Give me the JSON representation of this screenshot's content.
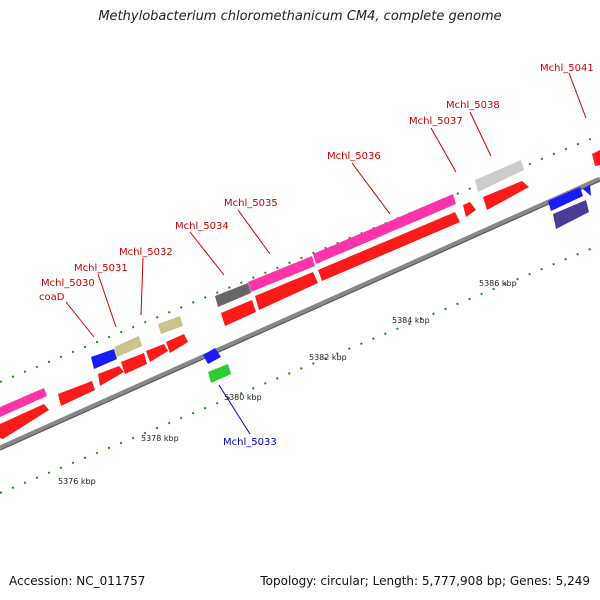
{
  "title": "Methylobacterium chloromethanicum CM4, complete genome",
  "footer": {
    "accession": "Accession: NC_011757",
    "summary": "Topology: circular; Length: 5,777,908 bp; Genes: 5,249"
  },
  "colors": {
    "cds_red": "#ff1a1a",
    "cds_pink": "#ff33aa",
    "cds_blue": "#1a1aff",
    "cds_navy": "#4a3d99",
    "cds_khaki": "#c9c48a",
    "cds_gray": "#666666",
    "cds_lightgray": "#cccccc",
    "cds_green": "#2ecc2e",
    "backbone": "#888888",
    "label_forward": "#cc0000",
    "label_reverse": "#0000cc",
    "tick_green": "#1f8a1f"
  },
  "scale_labels": [
    "5376 kbp",
    "5378 kbp",
    "5380 kbp",
    "5382 kbp",
    "5384 kbp",
    "5386 kbp"
  ],
  "gene_labels": {
    "coaD": "coaD",
    "m5030": "Mchl_5030",
    "m5031": "Mchl_5031",
    "m5032": "Mchl_5032",
    "m5033": "Mchl_5033",
    "m5034": "Mchl_5034",
    "m5035": "Mchl_5035",
    "m5036": "Mchl_5036",
    "m5037": "Mchl_5037",
    "m5038": "Mchl_5038",
    "m5041": "Mchl_5041"
  }
}
